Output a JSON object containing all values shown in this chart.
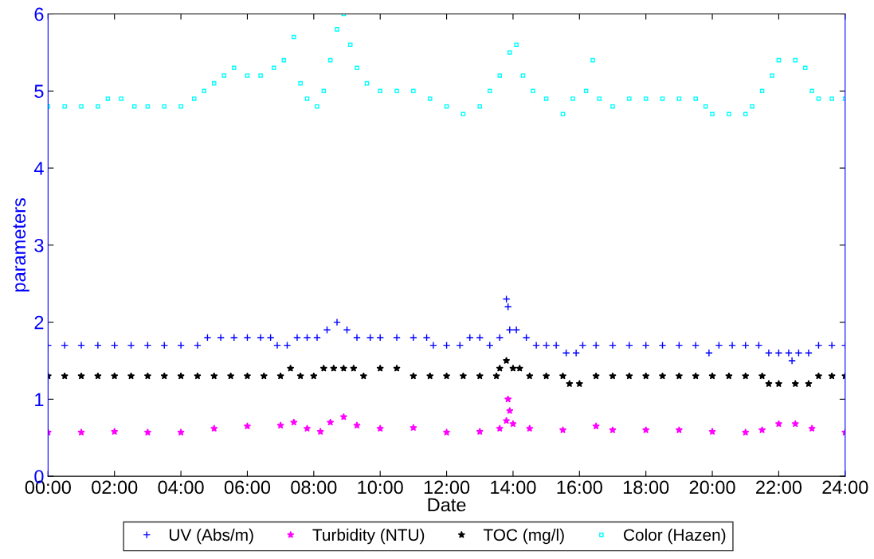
{
  "chart_data": {
    "type": "scatter",
    "xlabel": "Date",
    "ylabel": "parameters",
    "xlim": [
      0,
      24
    ],
    "ylim": [
      0,
      6
    ],
    "xticks": [
      {
        "value": 0,
        "label": "00:00"
      },
      {
        "value": 2,
        "label": "02:00"
      },
      {
        "value": 4,
        "label": "04:00"
      },
      {
        "value": 6,
        "label": "06:00"
      },
      {
        "value": 8,
        "label": "08:00"
      },
      {
        "value": 10,
        "label": "10:00"
      },
      {
        "value": 12,
        "label": "12:00"
      },
      {
        "value": 14,
        "label": "14:00"
      },
      {
        "value": 16,
        "label": "16:00"
      },
      {
        "value": 18,
        "label": "18:00"
      },
      {
        "value": 20,
        "label": "20:00"
      },
      {
        "value": 22,
        "label": "22:00"
      },
      {
        "value": 24,
        "label": "24:00"
      }
    ],
    "yticks": [
      0,
      1,
      2,
      3,
      4,
      5,
      6
    ],
    "grid": false,
    "legend": "bottom",
    "series": [
      {
        "name": "UV (Abs/m)",
        "color": "#0000ff",
        "marker": "cross",
        "x": [
          0,
          0.5,
          1,
          1.5,
          2,
          2.5,
          3,
          3.5,
          4,
          4.5,
          4.8,
          5.2,
          5.6,
          6,
          6.4,
          6.7,
          6.9,
          7.2,
          7.5,
          7.8,
          8.1,
          8.4,
          8.7,
          9,
          9.3,
          9.7,
          10,
          10.5,
          11,
          11.4,
          11.6,
          12,
          12.4,
          12.7,
          13,
          13.3,
          13.6,
          13.8,
          13.85,
          13.9,
          14.1,
          14.4,
          14.7,
          15,
          15.3,
          15.6,
          15.9,
          16.1,
          16.5,
          17,
          17.5,
          18,
          18.5,
          19,
          19.5,
          19.9,
          20.2,
          20.6,
          21,
          21.4,
          21.7,
          22,
          22.3,
          22.4,
          22.6,
          22.9,
          23.2,
          23.6,
          24
        ],
        "values": [
          1.7,
          1.7,
          1.7,
          1.7,
          1.7,
          1.7,
          1.7,
          1.7,
          1.7,
          1.7,
          1.8,
          1.8,
          1.8,
          1.8,
          1.8,
          1.8,
          1.7,
          1.7,
          1.8,
          1.8,
          1.8,
          1.9,
          2.0,
          1.9,
          1.8,
          1.8,
          1.8,
          1.8,
          1.8,
          1.8,
          1.7,
          1.7,
          1.7,
          1.8,
          1.8,
          1.7,
          1.8,
          2.3,
          2.2,
          1.9,
          1.9,
          1.8,
          1.7,
          1.7,
          1.7,
          1.6,
          1.6,
          1.7,
          1.7,
          1.7,
          1.7,
          1.7,
          1.7,
          1.7,
          1.7,
          1.6,
          1.7,
          1.7,
          1.7,
          1.7,
          1.6,
          1.6,
          1.6,
          1.5,
          1.6,
          1.6,
          1.7,
          1.7,
          1.7
        ]
      },
      {
        "name": "Turbidity (NTU)",
        "color": "#ff00ff",
        "marker": "star",
        "x": [
          0,
          1,
          2,
          3,
          4,
          5,
          6,
          7,
          7.4,
          7.8,
          8.2,
          8.5,
          8.9,
          9.3,
          10,
          11,
          12,
          13,
          13.6,
          13.8,
          13.85,
          13.9,
          14,
          14.5,
          15.5,
          16.5,
          17,
          18,
          19,
          20,
          21,
          21.5,
          22,
          22.5,
          23,
          24
        ],
        "values": [
          0.57,
          0.57,
          0.58,
          0.57,
          0.57,
          0.62,
          0.65,
          0.66,
          0.7,
          0.62,
          0.58,
          0.7,
          0.77,
          0.66,
          0.62,
          0.63,
          0.57,
          0.58,
          0.62,
          0.72,
          1.0,
          0.85,
          0.68,
          0.62,
          0.6,
          0.65,
          0.6,
          0.6,
          0.6,
          0.58,
          0.57,
          0.6,
          0.68,
          0.68,
          0.62,
          0.57
        ]
      },
      {
        "name": "TOC (mg/l)",
        "color": "#000000",
        "marker": "star",
        "x": [
          0,
          0.5,
          1,
          1.5,
          2,
          2.5,
          3,
          3.5,
          4,
          4.5,
          5,
          5.5,
          6,
          6.5,
          7,
          7.3,
          7.6,
          8,
          8.3,
          8.6,
          8.9,
          9.2,
          9.5,
          10,
          10.5,
          11,
          11.5,
          12,
          12.5,
          13,
          13.5,
          13.6,
          13.8,
          14,
          14.2,
          14.5,
          15,
          15.5,
          15.7,
          16,
          16.5,
          17,
          17.5,
          18,
          18.5,
          19,
          19.5,
          20,
          20.5,
          21,
          21.5,
          21.7,
          22,
          22.5,
          22.9,
          23.2,
          23.6,
          24
        ],
        "values": [
          1.3,
          1.3,
          1.3,
          1.3,
          1.3,
          1.3,
          1.3,
          1.3,
          1.3,
          1.3,
          1.3,
          1.3,
          1.3,
          1.3,
          1.3,
          1.4,
          1.3,
          1.3,
          1.4,
          1.4,
          1.4,
          1.4,
          1.3,
          1.4,
          1.4,
          1.3,
          1.3,
          1.3,
          1.3,
          1.3,
          1.3,
          1.4,
          1.5,
          1.4,
          1.4,
          1.3,
          1.3,
          1.3,
          1.2,
          1.2,
          1.3,
          1.3,
          1.3,
          1.3,
          1.3,
          1.3,
          1.3,
          1.3,
          1.3,
          1.3,
          1.3,
          1.2,
          1.2,
          1.2,
          1.2,
          1.3,
          1.3,
          1.3
        ]
      },
      {
        "name": "Color (Hazen)",
        "color": "#00ffff",
        "marker": "square",
        "x": [
          0,
          0.5,
          1,
          1.5,
          1.8,
          2.2,
          2.6,
          3,
          3.5,
          4,
          4.4,
          4.7,
          5,
          5.3,
          5.6,
          6,
          6.4,
          6.8,
          7.1,
          7.4,
          7.6,
          7.8,
          8.1,
          8.3,
          8.5,
          8.7,
          8.9,
          9.1,
          9.3,
          9.6,
          10,
          10.5,
          11,
          11.5,
          12,
          12.5,
          13,
          13.3,
          13.6,
          13.9,
          14.1,
          14.3,
          14.6,
          15,
          15.5,
          15.8,
          16.2,
          16.4,
          16.6,
          17,
          17.5,
          18,
          18.5,
          19,
          19.5,
          19.8,
          20,
          20.5,
          21,
          21.2,
          21.5,
          21.8,
          22,
          22.5,
          22.8,
          23,
          23.2,
          23.6,
          24
        ],
        "values": [
          4.8,
          4.8,
          4.8,
          4.8,
          4.9,
          4.9,
          4.8,
          4.8,
          4.8,
          4.8,
          4.9,
          5.0,
          5.1,
          5.2,
          5.3,
          5.2,
          5.2,
          5.3,
          5.4,
          5.7,
          5.1,
          4.9,
          4.8,
          5.0,
          5.4,
          5.8,
          6.0,
          5.6,
          5.3,
          5.1,
          5.0,
          5.0,
          5.0,
          4.9,
          4.8,
          4.7,
          4.8,
          5.0,
          5.2,
          5.5,
          5.6,
          5.2,
          5.0,
          4.9,
          4.7,
          4.9,
          5.0,
          5.4,
          4.9,
          4.8,
          4.9,
          4.9,
          4.9,
          4.9,
          4.9,
          4.8,
          4.7,
          4.7,
          4.7,
          4.8,
          5.0,
          5.2,
          5.4,
          5.4,
          5.3,
          5.0,
          4.9,
          4.9,
          4.9
        ]
      }
    ]
  }
}
